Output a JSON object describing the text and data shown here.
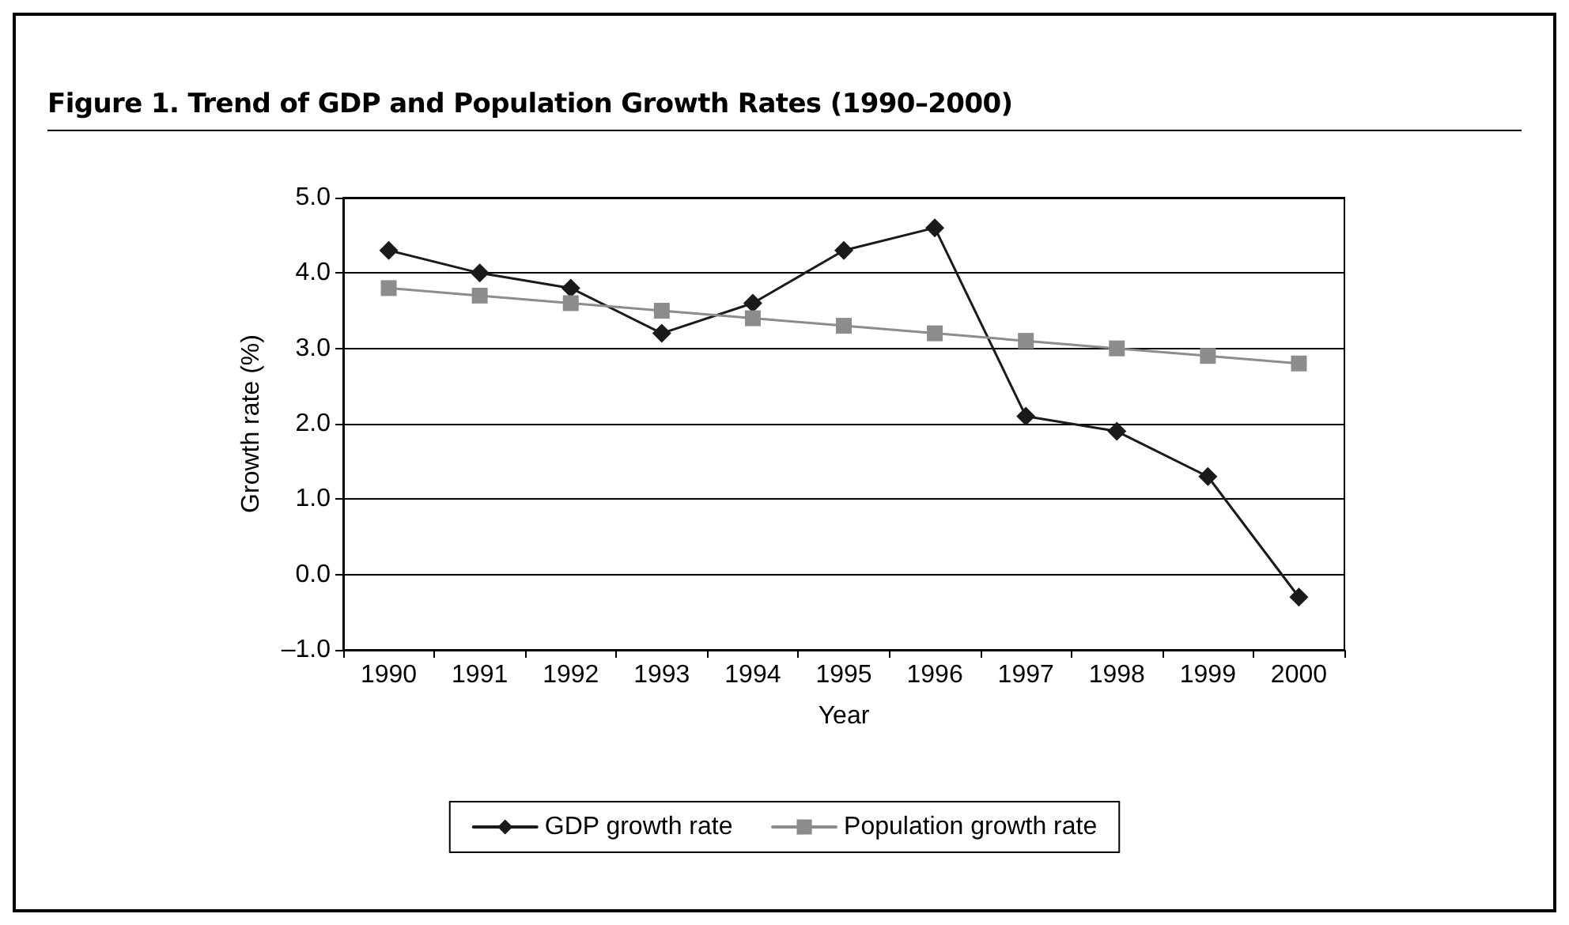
{
  "chart_data": {
    "type": "line",
    "title": "Figure 1.  Trend of GDP and Population Growth Rates (1990–2000)",
    "xlabel": "Year",
    "ylabel": "Growth rate (%)",
    "categories": [
      "1990",
      "1991",
      "1992",
      "1993",
      "1994",
      "1995",
      "1996",
      "1997",
      "1998",
      "1999",
      "2000"
    ],
    "series": [
      {
        "name": "GDP growth rate",
        "color": "#1a1a1a",
        "marker": "diamond",
        "values": [
          4.3,
          4.0,
          3.8,
          3.2,
          3.6,
          4.3,
          4.6,
          2.1,
          1.9,
          1.3,
          -0.3
        ]
      },
      {
        "name": "Population growth rate",
        "color": "#8c8c8c",
        "marker": "square",
        "values": [
          3.8,
          3.7,
          3.6,
          3.5,
          3.4,
          3.3,
          3.2,
          3.1,
          3.0,
          2.9,
          2.8
        ]
      }
    ],
    "ylim": [
      -1.0,
      5.0
    ],
    "yticks": [
      {
        "value": -1,
        "label": "–1.0"
      },
      {
        "value": 0,
        "label": "0.0"
      },
      {
        "value": 1,
        "label": "1.0"
      },
      {
        "value": 2,
        "label": "2.0"
      },
      {
        "value": 3,
        "label": "3.0"
      },
      {
        "value": 4,
        "label": "4.0"
      },
      {
        "value": 5,
        "label": "5.0"
      }
    ],
    "grid": "y",
    "legend": "bottom",
    "line_style": "solid"
  }
}
